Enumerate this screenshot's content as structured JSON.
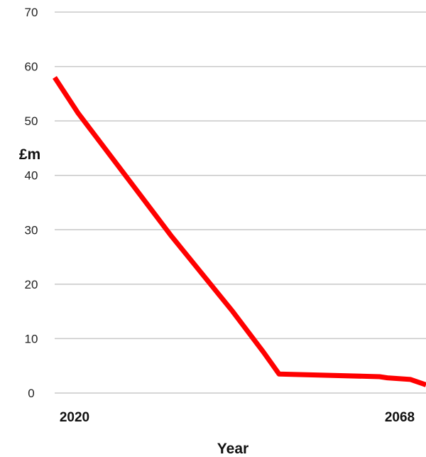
{
  "chart_data": {
    "type": "line",
    "xlabel": "Year",
    "ylabel": "£m",
    "ylim": [
      0,
      70
    ],
    "xlim": [
      2020,
      2068
    ],
    "y_ticks": [
      "0",
      "10",
      "20",
      "30",
      "40",
      "50",
      "60",
      "70"
    ],
    "x_tick_labels": [
      "2020",
      "2068"
    ],
    "grid": true,
    "series": [
      {
        "color": "#ff0000",
        "x": [
          2020,
          2023,
          2027,
          2031,
          2035,
          2039,
          2043,
          2047,
          2049,
          2062,
          2063,
          2066,
          2068
        ],
        "y": [
          58,
          51.5,
          44,
          36.5,
          29,
          22,
          15,
          7.5,
          3.5,
          3.0,
          2.8,
          2.5,
          1.5
        ]
      }
    ]
  }
}
